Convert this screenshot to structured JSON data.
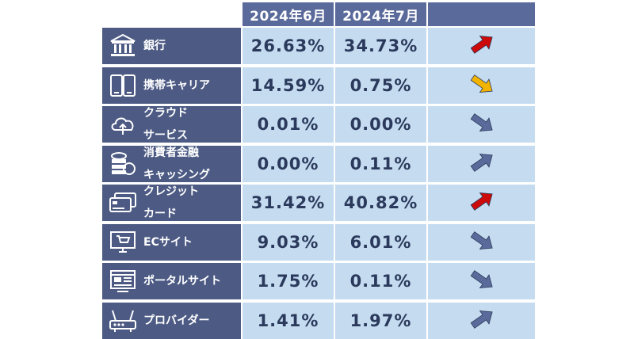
{
  "header": {
    "col1": "2024年6月",
    "col2": "2024年7月"
  },
  "rows": [
    {
      "label": [
        "銀行"
      ],
      "icon": "bank-icon",
      "jun": "26.63%",
      "jul": "34.73%",
      "trend": "up",
      "trend_color": "#cc0a0a"
    },
    {
      "label": [
        "携帯キャリア"
      ],
      "icon": "mobile-phone-icon",
      "jun": "14.59%",
      "jul": "0.75%",
      "trend": "down",
      "trend_color": "#f2b400"
    },
    {
      "label": [
        "クラウド",
        "サービス"
      ],
      "icon": "cloud-upload-icon",
      "jun": "0.01%",
      "jul": "0.00%",
      "trend": "down",
      "trend_color": "#5a6a9a"
    },
    {
      "label": [
        "消費者金融",
        "キャッシング"
      ],
      "icon": "coins-icon",
      "jun": "0.00%",
      "jul": "0.11%",
      "trend": "up",
      "trend_color": "#5a6a9a"
    },
    {
      "label": [
        "クレジット",
        "カード"
      ],
      "icon": "credit-card-icon",
      "jun": "31.42%",
      "jul": "40.82%",
      "trend": "up",
      "trend_color": "#cc0a0a"
    },
    {
      "label": [
        "ECサイト"
      ],
      "icon": "shopping-cart-screen-icon",
      "jun": "9.03%",
      "jul": "6.01%",
      "trend": "down",
      "trend_color": "#5a6a9a"
    },
    {
      "label": [
        "ポータルサイト"
      ],
      "icon": "browser-window-icon",
      "jun": "1.75%",
      "jul": "0.11%",
      "trend": "down",
      "trend_color": "#5a6a9a"
    },
    {
      "label": [
        "プロバイダー"
      ],
      "icon": "router-icon",
      "jun": "1.41%",
      "jul": "1.97%",
      "trend": "up",
      "trend_color": "#5a6a9a"
    }
  ]
}
